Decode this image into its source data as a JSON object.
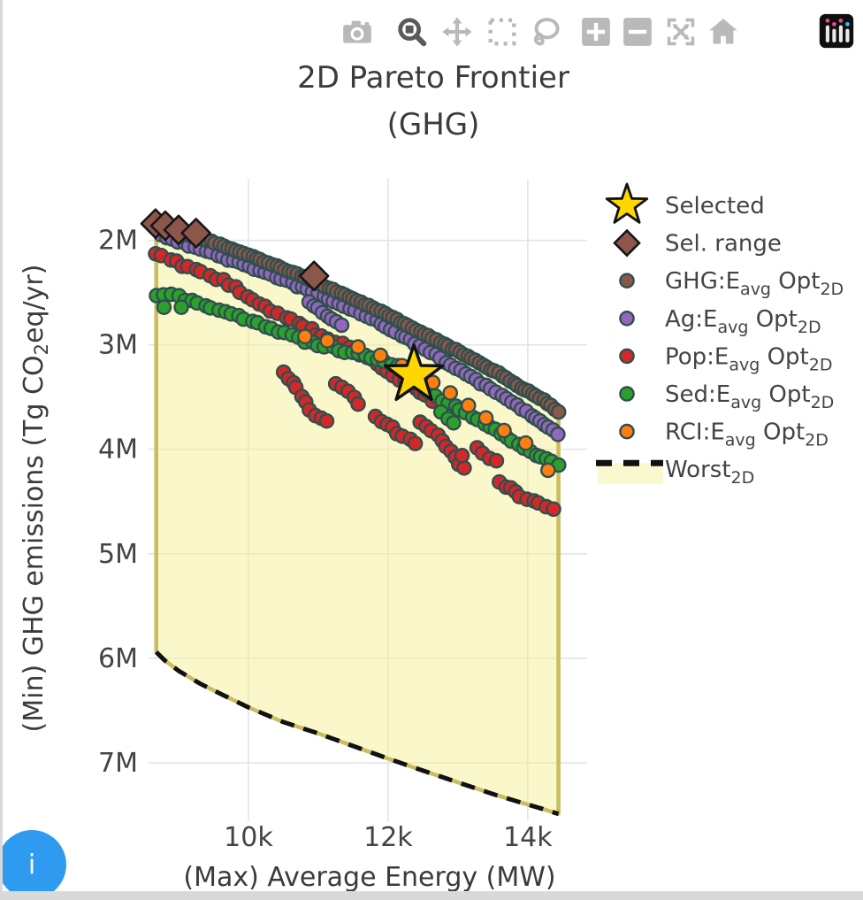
{
  "page": {
    "info_button_label": "i"
  },
  "modebar": {
    "icons": [
      "camera-icon",
      "zoom-icon",
      "pan-icon",
      "box-select-icon",
      "lasso-select-icon",
      "zoom-in-icon",
      "zoom-out-icon",
      "autoscale-icon",
      "reset-axes-icon",
      "plotly-logo-icon"
    ],
    "active": "zoom-icon"
  },
  "style": {
    "grid": "#e4e4e4",
    "text": "#444444",
    "title_text": "#3b3b3b",
    "modebar_icon": "#b9b9b9",
    "modebar_active": "#5a5a5a",
    "info_button": "#2e9af0"
  },
  "chart_data": {
    "type": "scatter",
    "title_lines": [
      "2D Pareto Frontier",
      "(GHG)"
    ],
    "xlabel": "(Max) Average Energy (MW)",
    "ylabel_parts": {
      "pre": "(Min) GHG emissions (Tg CO",
      "sub": "2",
      "post": "eq/yr)"
    },
    "x_axis": {
      "range": [
        8570,
        14850
      ],
      "ticks": [
        {
          "v": 10000,
          "label": "10k"
        },
        {
          "v": 12000,
          "label": "12k"
        },
        {
          "v": 14000,
          "label": "14k"
        }
      ]
    },
    "y_axis": {
      "range": [
        1.41,
        7.56
      ],
      "reversed": true,
      "unit": "M Tg CO2eq/yr",
      "ticks": [
        {
          "v": 2,
          "label": "2M"
        },
        {
          "v": 3,
          "label": "3M"
        },
        {
          "v": 4,
          "label": "4M"
        },
        {
          "v": 5,
          "label": "5M"
        },
        {
          "v": 6,
          "label": "6M"
        },
        {
          "v": 7,
          "label": "7M"
        }
      ]
    },
    "grid": true,
    "legend_position": "right",
    "series": [
      {
        "id": "selected",
        "legend": [
          {
            "t": "Selected"
          }
        ],
        "marker": "star",
        "color": "#ffd700",
        "outline": "#111111",
        "points": [
          [
            12370,
            3.29
          ]
        ]
      },
      {
        "id": "sel-range",
        "legend": [
          {
            "t": "Sel. range"
          }
        ],
        "marker": "diamond",
        "color": "#8c564b",
        "outline": "#161616",
        "points": [
          [
            8670,
            1.84
          ],
          [
            8810,
            1.86
          ],
          [
            9000,
            1.9
          ],
          [
            9250,
            1.93
          ],
          [
            10940,
            2.34
          ]
        ]
      },
      {
        "id": "ghg",
        "legend": [
          {
            "t": "GHG:E"
          },
          {
            "t": "avg",
            "sub": true
          },
          {
            "t": " Opt"
          },
          {
            "t": "2D",
            "sub": true
          }
        ],
        "marker": "circle",
        "color": "#8c564b",
        "outline": "#2f4f4f",
        "segments": [
          [
            [
              8680,
              1.86
            ],
            [
              9290,
              1.97
            ],
            [
              10000,
              2.14
            ],
            [
              10750,
              2.34
            ],
            [
              11500,
              2.56
            ],
            [
              12010,
              2.72
            ],
            [
              12520,
              2.9
            ],
            [
              13030,
              3.07
            ],
            [
              13530,
              3.25
            ],
            [
              13910,
              3.41
            ],
            [
              14230,
              3.53
            ],
            [
              14440,
              3.64
            ]
          ]
        ]
      },
      {
        "id": "ag",
        "legend": [
          {
            "t": "Ag:E"
          },
          {
            "t": "avg",
            "sub": true
          },
          {
            "t": " Opt"
          },
          {
            "t": "2D",
            "sub": true
          }
        ],
        "marker": "circle",
        "color": "#9467bd",
        "outline": "#2f4f4f",
        "segments": [
          [
            [
              8750,
              1.95
            ],
            [
              9480,
              2.12
            ],
            [
              10240,
              2.31
            ],
            [
              11000,
              2.51
            ],
            [
              11760,
              2.75
            ],
            [
              12390,
              2.98
            ],
            [
              12900,
              3.19
            ],
            [
              13400,
              3.39
            ],
            [
              13850,
              3.58
            ],
            [
              14190,
              3.73
            ],
            [
              14420,
              3.85
            ]
          ],
          [
            [
              10870,
              2.59
            ],
            [
              11320,
              2.81
            ]
          ]
        ]
      },
      {
        "id": "pop",
        "legend": [
          {
            "t": "Pop:E"
          },
          {
            "t": "avg",
            "sub": true
          },
          {
            "t": " Opt"
          },
          {
            "t": "2D",
            "sub": true
          }
        ],
        "marker": "circle",
        "color": "#d62728",
        "outline": "#2f4f4f",
        "segments": [
          [
            [
              8680,
              2.13
            ],
            [
              9230,
              2.28
            ],
            [
              9730,
              2.42
            ],
            [
              10240,
              2.64
            ],
            [
              10620,
              2.76
            ],
            [
              11060,
              2.92
            ],
            [
              11440,
              3.02
            ],
            [
              11760,
              3.15
            ],
            [
              12070,
              3.28
            ],
            [
              12390,
              3.42
            ],
            [
              12640,
              3.53
            ]
          ],
          [
            [
              10500,
              3.26
            ],
            [
              10700,
              3.42
            ],
            [
              10820,
              3.55
            ]
          ],
          [
            [
              10870,
              3.62
            ],
            [
              11130,
              3.74
            ]
          ],
          [
            [
              11250,
              3.37
            ],
            [
              11570,
              3.55
            ]
          ],
          [
            [
              11820,
              3.68
            ],
            [
              12140,
              3.84
            ],
            [
              12390,
              3.95
            ]
          ],
          [
            [
              12460,
              3.74
            ],
            [
              12770,
              3.92
            ],
            [
              13090,
              4.18
            ]
          ],
          [
            [
              13280,
              3.98
            ],
            [
              13530,
              4.12
            ]
          ],
          [
            [
              13590,
              4.32
            ],
            [
              13910,
              4.45
            ],
            [
              14160,
              4.52
            ],
            [
              14350,
              4.57
            ]
          ]
        ],
        "points": [
          [
            13060,
            4.06
          ]
        ]
      },
      {
        "id": "sed",
        "legend": [
          {
            "t": "Sed:E"
          },
          {
            "t": "avg",
            "sub": true
          },
          {
            "t": " Opt"
          },
          {
            "t": "2D",
            "sub": true
          }
        ],
        "marker": "circle",
        "color": "#2ca02c",
        "outline": "#2f4f4f",
        "segments": [
          [
            [
              8680,
              2.53
            ],
            [
              8900,
              2.5
            ],
            [
              9100,
              2.56
            ],
            [
              9480,
              2.64
            ],
            [
              9860,
              2.72
            ],
            [
              10240,
              2.82
            ],
            [
              10620,
              2.92
            ],
            [
              11000,
              3.0
            ],
            [
              11380,
              3.06
            ],
            [
              11760,
              3.12
            ],
            [
              12140,
              3.2
            ],
            [
              12390,
              3.26
            ]
          ],
          [
            [
              12520,
              3.42
            ],
            [
              12770,
              3.52
            ],
            [
              13030,
              3.62
            ],
            [
              13280,
              3.72
            ],
            [
              13530,
              3.82
            ],
            [
              13780,
              3.92
            ],
            [
              14030,
              4.02
            ],
            [
              14280,
              4.1
            ],
            [
              14430,
              4.15
            ]
          ],
          [
            [
              12750,
              3.64
            ],
            [
              12940,
              3.75
            ]
          ]
        ],
        "points": [
          [
            8790,
            2.64
          ],
          [
            9040,
            2.64
          ]
        ]
      },
      {
        "id": "rci",
        "legend": [
          {
            "t": "RCI:E"
          },
          {
            "t": "avg",
            "sub": true
          },
          {
            "t": " Opt"
          },
          {
            "t": "2D",
            "sub": true
          }
        ],
        "marker": "circle",
        "color": "#ff7f0e",
        "outline": "#2f4f4f",
        "points": [
          [
            10810,
            2.92
          ],
          [
            11130,
            2.96
          ],
          [
            11570,
            3.02
          ],
          [
            11890,
            3.1
          ],
          [
            12200,
            3.2
          ],
          [
            12450,
            3.28
          ],
          [
            12640,
            3.36
          ],
          [
            12890,
            3.46
          ],
          [
            13150,
            3.58
          ],
          [
            13400,
            3.7
          ],
          [
            13660,
            3.82
          ],
          [
            13970,
            3.94
          ],
          [
            14290,
            4.2
          ]
        ]
      },
      {
        "id": "worst",
        "legend": [
          {
            "t": "Worst"
          },
          {
            "t": "2D",
            "sub": true
          }
        ],
        "marker": "area-dash",
        "color": "#111111",
        "fill": "rgba(245,240,150,0.5)",
        "edge": "#c9bd5f",
        "legend_fill": "#faf8cf",
        "points": [
          [
            8680,
            5.94
          ],
          [
            8800,
            6.02
          ],
          [
            9000,
            6.12
          ],
          [
            9300,
            6.24
          ],
          [
            9600,
            6.34
          ],
          [
            10000,
            6.47
          ],
          [
            10500,
            6.61
          ],
          [
            11000,
            6.72
          ],
          [
            11500,
            6.84
          ],
          [
            12000,
            6.96
          ],
          [
            12300,
            7.03
          ],
          [
            12700,
            7.12
          ],
          [
            13100,
            7.21
          ],
          [
            13500,
            7.3
          ],
          [
            13900,
            7.38
          ],
          [
            14200,
            7.44
          ],
          [
            14440,
            7.49
          ]
        ]
      }
    ]
  }
}
